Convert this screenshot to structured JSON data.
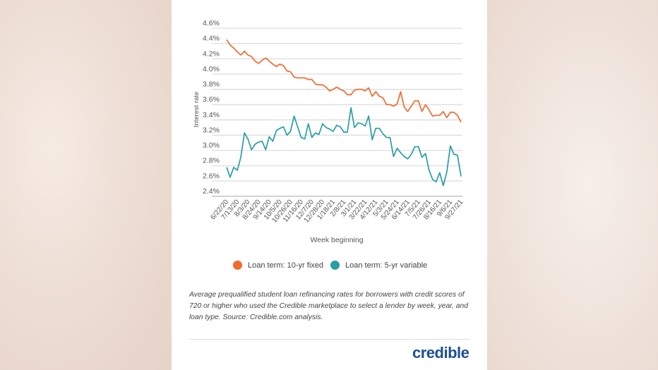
{
  "chart_data": {
    "type": "line",
    "xlabel": "Week beginning",
    "ylabel": "Interest rate",
    "ylim": [
      2.4,
      4.6
    ],
    "yticks": [
      "4.6%",
      "4.4%",
      "4.2%",
      "4.0%",
      "3.8%",
      "3.6%",
      "3.4%",
      "3.2%",
      "3.0%",
      "2.8%",
      "2.6%",
      "2.4%"
    ],
    "grid": true,
    "legend_position": "bottom",
    "xtick_labels": [
      "6/22/20",
      "7/13/20",
      "8/3/20",
      "8/24/20",
      "9/14/20",
      "10/5/20",
      "10/26/20",
      "11/16/20",
      "12/7/20",
      "12/28/20",
      "1/18/21",
      "2/8/21",
      "3/1/21",
      "3/22/21",
      "4/12/21",
      "5/3/21",
      "5/24/21",
      "6/14/21",
      "7/5/21",
      "7/26/21",
      "8/16/21",
      "9/6/21",
      "9/27/21"
    ],
    "series": [
      {
        "name": "Loan term: 10-yr fixed",
        "color": "#f26a2e",
        "values": [
          4.45,
          4.38,
          4.34,
          4.29,
          4.25,
          4.3,
          4.25,
          4.23,
          4.17,
          4.14,
          4.18,
          4.21,
          4.17,
          4.13,
          4.1,
          4.13,
          4.11,
          4.04,
          4.03,
          3.96,
          3.95,
          3.95,
          3.95,
          3.93,
          3.93,
          3.87,
          3.86,
          3.86,
          3.83,
          3.78,
          3.8,
          3.83,
          3.8,
          3.78,
          3.73,
          3.73,
          3.79,
          3.8,
          3.8,
          3.78,
          3.82,
          3.71,
          3.77,
          3.71,
          3.69,
          3.6,
          3.6,
          3.58,
          3.61,
          3.77,
          3.57,
          3.51,
          3.58,
          3.65,
          3.65,
          3.51,
          3.6,
          3.53,
          3.45,
          3.46,
          3.46,
          3.51,
          3.43,
          3.5,
          3.5,
          3.46,
          3.37
        ]
      },
      {
        "name": "Loan term: 5-yr variable",
        "color": "#2a9da5",
        "values": [
          2.78,
          2.65,
          2.78,
          2.74,
          2.91,
          3.23,
          3.15,
          3.01,
          3.08,
          3.11,
          3.12,
          3.01,
          3.18,
          3.12,
          3.26,
          3.29,
          3.31,
          3.2,
          3.25,
          3.45,
          3.31,
          3.17,
          3.15,
          3.35,
          3.17,
          3.23,
          3.21,
          3.35,
          3.3,
          3.28,
          3.25,
          3.33,
          3.31,
          3.24,
          3.24,
          3.56,
          3.3,
          3.36,
          3.35,
          3.32,
          3.45,
          3.14,
          3.29,
          3.29,
          3.22,
          3.17,
          3.17,
          2.92,
          3.03,
          2.97,
          2.92,
          2.89,
          2.95,
          3.05,
          3.05,
          2.91,
          2.96,
          2.74,
          2.62,
          2.59,
          2.71,
          2.54,
          2.72,
          3.06,
          2.95,
          2.94,
          2.66
        ]
      }
    ]
  },
  "caption": "Average prequalified student loan refinancing rates for borrowers with credit scores of 720 or higher who used the Credible marketplace to select a lender by week, year, and loan type. Source: Credible.com analysis.",
  "logo": "credible"
}
